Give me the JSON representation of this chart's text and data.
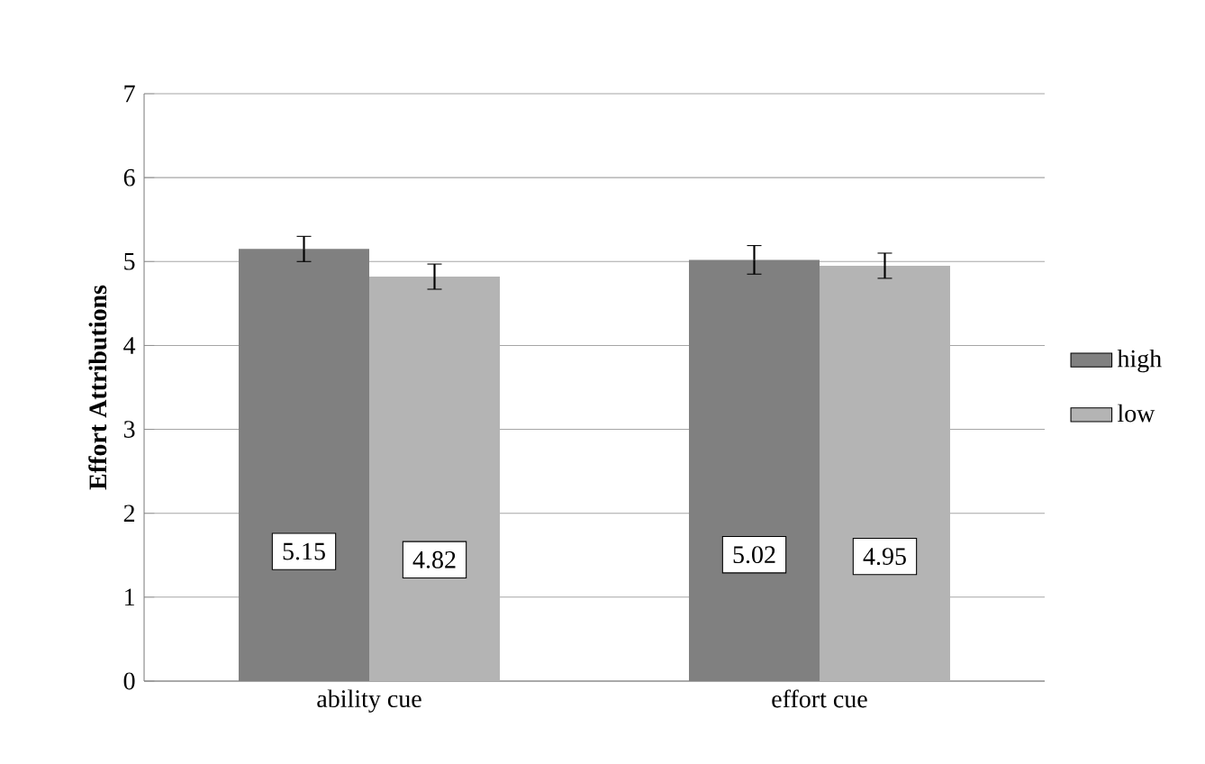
{
  "chart_data": {
    "type": "bar",
    "ylabel": "Effort Attributions",
    "categories": [
      "ability cue",
      "effort cue"
    ],
    "series": [
      {
        "name": "high",
        "color": "#808080",
        "values": [
          5.15,
          5.02
        ],
        "errors": [
          0.15,
          0.17
        ]
      },
      {
        "name": "low",
        "color": "#b4b4b4",
        "values": [
          4.82,
          4.95
        ],
        "errors": [
          0.15,
          0.15
        ]
      }
    ],
    "ylim": [
      0,
      7
    ],
    "yticks": [
      0,
      1,
      2,
      3,
      4,
      5,
      6,
      7
    ],
    "grid": "y",
    "legend": "right",
    "data_labels": true
  }
}
